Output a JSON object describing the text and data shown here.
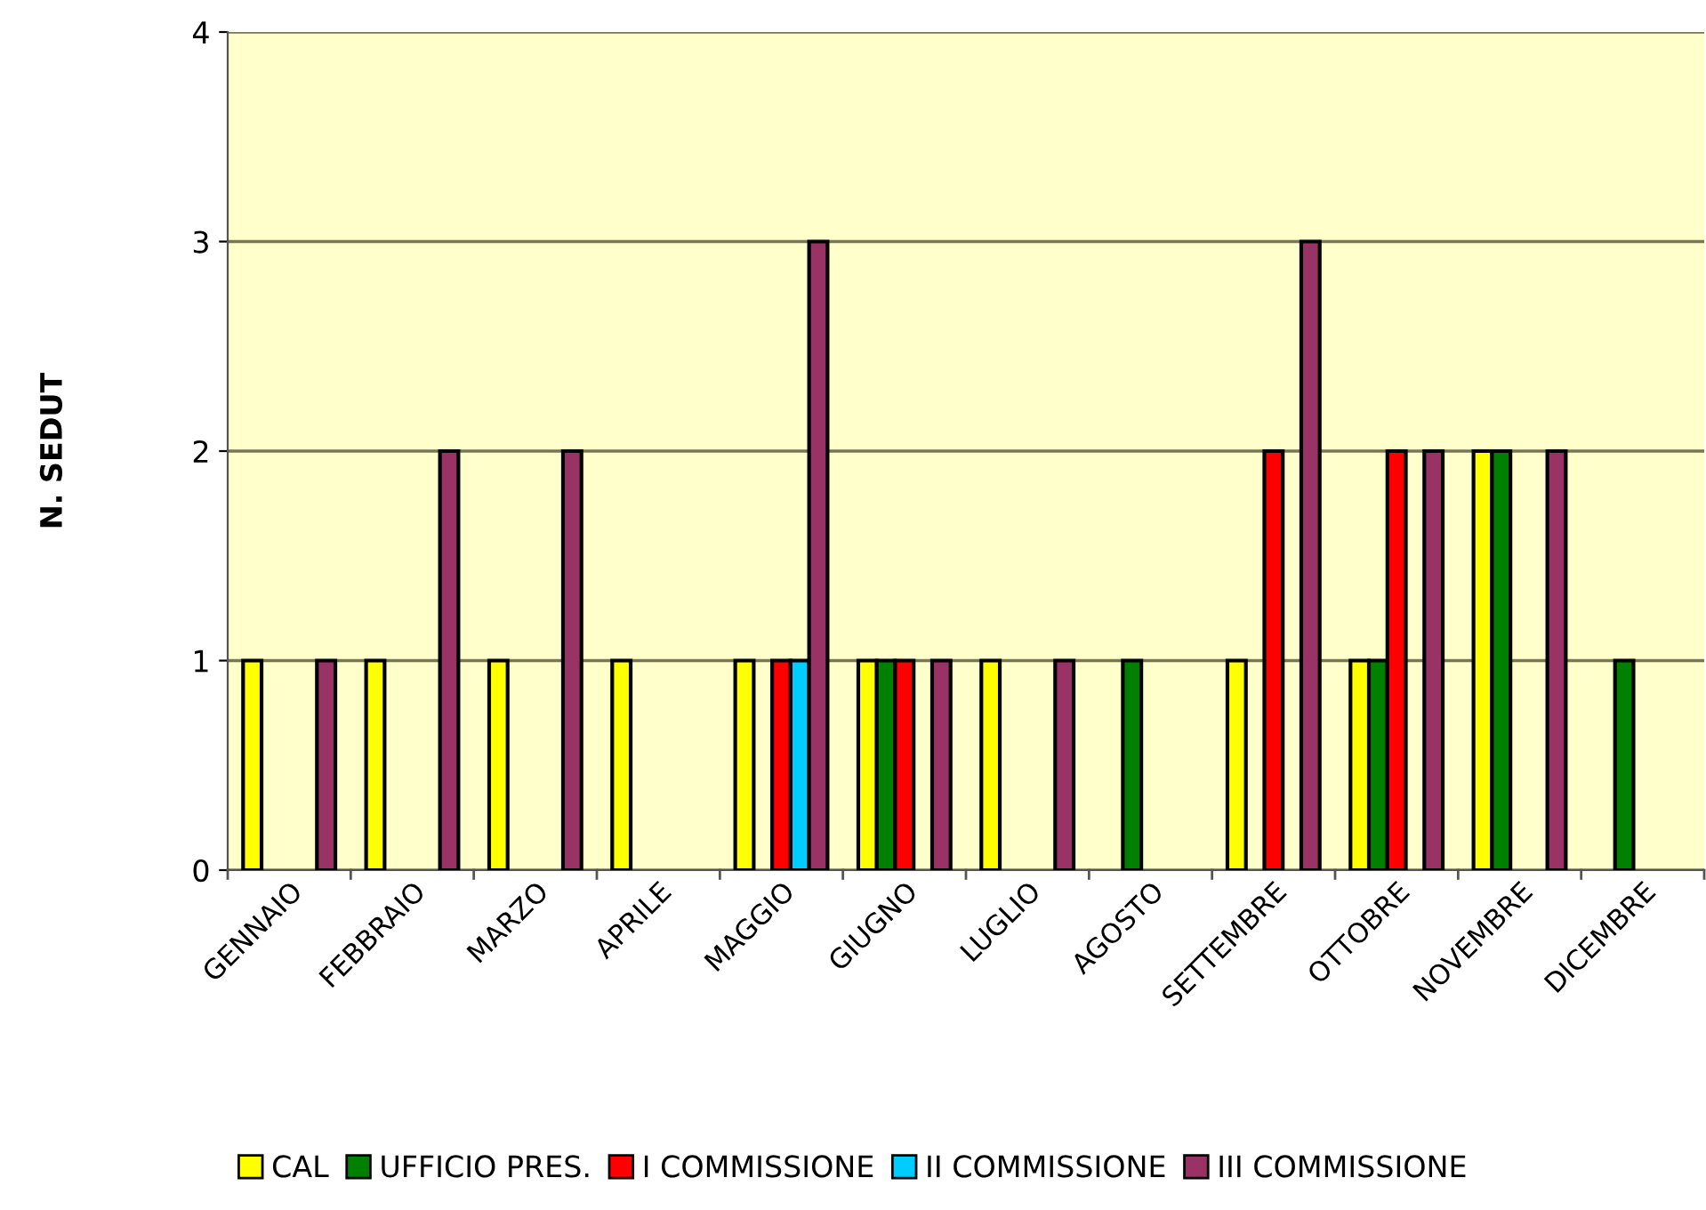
{
  "chart_data": {
    "type": "bar",
    "ylabel": "N. SEDUT",
    "categories": [
      "GENNAIO",
      "FEBBRAIO",
      "MARZO",
      "APRILE",
      "MAGGIO",
      "GIUGNO",
      "LUGLIO",
      "AGOSTO",
      "SETTEMBRE",
      "OTTOBRE",
      "NOVEMBRE",
      "DICEMBRE"
    ],
    "series": [
      {
        "name": "CAL",
        "color": "#ffff00",
        "values": [
          1,
          1,
          1,
          1,
          1,
          1,
          1,
          null,
          1,
          1,
          2,
          null
        ]
      },
      {
        "name": "UFFICIO PRES.",
        "color": "#008000",
        "values": [
          null,
          null,
          null,
          null,
          null,
          1,
          null,
          1,
          null,
          1,
          2,
          1
        ]
      },
      {
        "name": "I COMMISSIONE",
        "color": "#ff0000",
        "values": [
          null,
          null,
          null,
          null,
          1,
          1,
          null,
          null,
          2,
          2,
          null,
          null
        ]
      },
      {
        "name": "II COMMISSIONE",
        "color": "#00ccff",
        "values": [
          null,
          null,
          null,
          null,
          1,
          null,
          null,
          null,
          null,
          null,
          null,
          null
        ]
      },
      {
        "name": "III COMMISSIONE",
        "color": "#993366",
        "values": [
          1,
          2,
          2,
          null,
          3,
          1,
          1,
          null,
          3,
          2,
          2,
          null
        ]
      }
    ],
    "ylim": [
      0,
      4
    ],
    "yticks": [
      0,
      1,
      2,
      3,
      4
    ],
    "grid": "y",
    "legend": "bottom"
  }
}
